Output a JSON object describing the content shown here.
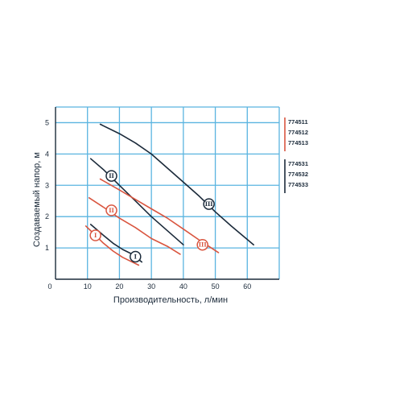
{
  "chart_data": {
    "type": "line",
    "title": "",
    "xlabel": "Производительность, л/мин",
    "ylabel": "Создаваемый напор, м",
    "xlim": [
      0,
      70
    ],
    "ylim": [
      0,
      5.5
    ],
    "xticks": [
      "0",
      "10",
      "20",
      "30",
      "40",
      "50",
      "60"
    ],
    "yticks": [
      "1",
      "2",
      "3",
      "4",
      "5"
    ],
    "grid": true,
    "colors": {
      "navy": "#1b2a3a",
      "red": "#d9553f",
      "grid": "#5ab4e0"
    },
    "series": [
      {
        "group": "navy",
        "marker": "I",
        "marker_at": [
          25,
          0.72
        ],
        "x": [
          11,
          15,
          18,
          21,
          24,
          27
        ],
        "y": [
          1.75,
          1.4,
          1.15,
          0.95,
          0.8,
          0.55
        ]
      },
      {
        "group": "navy",
        "marker": "II",
        "marker_at": [
          17.5,
          3.3
        ],
        "x": [
          11,
          15,
          20,
          25,
          30,
          35,
          40
        ],
        "y": [
          3.85,
          3.5,
          3.0,
          2.5,
          2.0,
          1.55,
          1.1
        ]
      },
      {
        "group": "navy",
        "marker": "III",
        "marker_at": [
          48,
          2.4
        ],
        "x": [
          14,
          20,
          25,
          30,
          35,
          40,
          45,
          50,
          55,
          62
        ],
        "y": [
          4.95,
          4.65,
          4.35,
          4.0,
          3.55,
          3.1,
          2.65,
          2.15,
          1.7,
          1.1
        ]
      },
      {
        "group": "red",
        "marker": "I",
        "marker_at": [
          12.5,
          1.4
        ],
        "x": [
          9.5,
          12,
          15,
          18,
          21,
          26
        ],
        "y": [
          1.7,
          1.45,
          1.15,
          0.9,
          0.7,
          0.45
        ]
      },
      {
        "group": "red",
        "marker": "II",
        "marker_at": [
          17.5,
          2.2
        ],
        "x": [
          10.5,
          15,
          20,
          25,
          30,
          35,
          39
        ],
        "y": [
          2.6,
          2.3,
          1.95,
          1.65,
          1.3,
          1.05,
          0.8
        ]
      },
      {
        "group": "red",
        "marker": "III",
        "marker_at": [
          46,
          1.1
        ],
        "x": [
          14,
          20,
          25,
          30,
          35,
          40,
          45,
          51
        ],
        "y": [
          3.2,
          2.85,
          2.55,
          2.25,
          1.95,
          1.6,
          1.25,
          0.85
        ]
      }
    ],
    "legend": [
      {
        "group": "red",
        "items": [
          "774511",
          "774512",
          "774513"
        ]
      },
      {
        "group": "navy",
        "items": [
          "774531",
          "774532",
          "774533"
        ]
      }
    ]
  }
}
